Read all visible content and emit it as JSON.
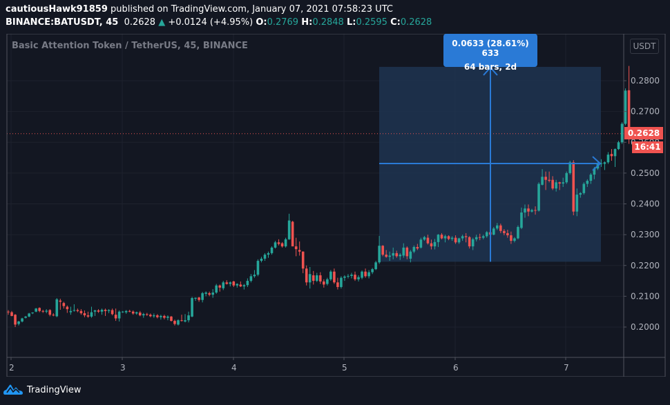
{
  "header": {
    "author": "cautiousHawk91859",
    "published": "published on TradingView.com, January 07, 2021 07:58:23 UTC",
    "symbol": "BINANCE:BATUSDT, 45",
    "last": "0.2628",
    "change": "+0.0124 (+4.95%)",
    "o_label": "O:",
    "o_value": "0.2769",
    "h_label": "H:",
    "h_value": "0.2848",
    "l_label": "L:",
    "l_value": "0.2595",
    "c_label": "C:",
    "c_value": "0.2628"
  },
  "chart": {
    "legend_title": "Basic Attention Token / TetherUS, 45, BINANCE",
    "currency": "USDT",
    "last_price_tag": "0.2628",
    "countdown_tag": "16:41",
    "measure_line1": "0.0633 (28.61%) 633",
    "measure_line2": "64 bars, 2d"
  },
  "colors": {
    "background": "#131722",
    "up": "#26a69a",
    "down": "#ef5350",
    "grid": "#1e222d",
    "axis_border": "#50535e",
    "measure_fill": "#1e3450",
    "measure_line": "#2a7ad6",
    "price_line": "#ef5350"
  },
  "brand": {
    "name": "TradingView"
  },
  "chart_data": {
    "type": "candlestick",
    "title": "Basic Attention Token / TetherUS, 45, BINANCE",
    "xlabel": "",
    "ylabel": "USDT",
    "x_ticks": [
      "2",
      "3",
      "4",
      "5",
      "6",
      "7"
    ],
    "y_ticks": [
      "0.2000",
      "0.2100",
      "0.2200",
      "0.2300",
      "0.2400",
      "0.2500",
      "0.2600",
      "0.2700",
      "0.2800"
    ],
    "ylim": [
      0.1925,
      0.2965
    ],
    "grid": true,
    "last_price": 0.2628,
    "measure": {
      "from_price": 0.2212,
      "to_price": 0.2845,
      "change": "0.0633 (28.61%) 633",
      "bars": "64 bars, 2d"
    },
    "ohlc": [
      [
        0.205,
        0.2055,
        0.204,
        0.2048
      ],
      [
        0.2048,
        0.2052,
        0.2035,
        0.2036
      ],
      [
        0.204,
        0.2042,
        0.2,
        0.2008
      ],
      [
        0.201,
        0.202,
        0.2005,
        0.2018
      ],
      [
        0.2018,
        0.203,
        0.2015,
        0.2028
      ],
      [
        0.203,
        0.2036,
        0.2028,
        0.2034
      ],
      [
        0.2034,
        0.2046,
        0.2032,
        0.2044
      ],
      [
        0.2045,
        0.2048,
        0.2042,
        0.2047
      ],
      [
        0.205,
        0.2062,
        0.2048,
        0.206
      ],
      [
        0.2062,
        0.2064,
        0.2048,
        0.2052
      ],
      [
        0.2052,
        0.2056,
        0.2046,
        0.205
      ],
      [
        0.205,
        0.2058,
        0.2045,
        0.2053
      ],
      [
        0.2055,
        0.2058,
        0.2035,
        0.204
      ],
      [
        0.204,
        0.2045,
        0.2035,
        0.2038
      ],
      [
        0.2035,
        0.2094,
        0.2032,
        0.209
      ],
      [
        0.2086,
        0.2092,
        0.2056,
        0.2082
      ],
      [
        0.2078,
        0.2082,
        0.206,
        0.2068
      ],
      [
        0.2066,
        0.207,
        0.2046,
        0.2058
      ],
      [
        0.2048,
        0.2066,
        0.204,
        0.2052
      ],
      [
        0.2053,
        0.2074,
        0.205,
        0.2055
      ],
      [
        0.2055,
        0.206,
        0.2048,
        0.2052
      ],
      [
        0.2052,
        0.2058,
        0.204,
        0.2045
      ],
      [
        0.2045,
        0.2054,
        0.2032,
        0.2038
      ],
      [
        0.2038,
        0.205,
        0.203,
        0.2034
      ],
      [
        0.2034,
        0.2066,
        0.203,
        0.2048
      ],
      [
        0.205,
        0.2056,
        0.2036,
        0.2054
      ],
      [
        0.2054,
        0.2058,
        0.2046,
        0.205
      ],
      [
        0.205,
        0.206,
        0.204,
        0.2056
      ],
      [
        0.2056,
        0.206,
        0.2036,
        0.2052
      ],
      [
        0.2052,
        0.2058,
        0.2045,
        0.2055
      ],
      [
        0.2055,
        0.206,
        0.2038,
        0.2042
      ],
      [
        0.204,
        0.206,
        0.202,
        0.2028
      ],
      [
        0.2028,
        0.2054,
        0.2018,
        0.205
      ],
      [
        0.2048,
        0.2052,
        0.2046,
        0.205
      ],
      [
        0.2048,
        0.2055,
        0.2043,
        0.2052
      ],
      [
        0.2052,
        0.2056,
        0.2048,
        0.205
      ],
      [
        0.205,
        0.2054,
        0.204,
        0.2044
      ],
      [
        0.2044,
        0.205,
        0.204,
        0.2048
      ],
      [
        0.2047,
        0.2052,
        0.2035,
        0.2038
      ],
      [
        0.2038,
        0.2046,
        0.203,
        0.2042
      ],
      [
        0.2042,
        0.2046,
        0.2036,
        0.204
      ],
      [
        0.204,
        0.2044,
        0.2032,
        0.2035
      ],
      [
        0.2035,
        0.2044,
        0.203,
        0.2038
      ],
      [
        0.2038,
        0.2042,
        0.2028,
        0.2032
      ],
      [
        0.2032,
        0.204,
        0.2024,
        0.2036
      ],
      [
        0.2036,
        0.204,
        0.2025,
        0.203
      ],
      [
        0.203,
        0.2038,
        0.2022,
        0.2034
      ],
      [
        0.2034,
        0.2036,
        0.2018,
        0.202
      ],
      [
        0.202,
        0.2024,
        0.2005,
        0.201
      ],
      [
        0.2008,
        0.2025,
        0.2005,
        0.2022
      ],
      [
        0.2022,
        0.204,
        0.2018,
        0.202
      ],
      [
        0.2018,
        0.2042,
        0.2015,
        0.2022
      ],
      [
        0.2022,
        0.205,
        0.2015,
        0.2038
      ],
      [
        0.2034,
        0.2098,
        0.2032,
        0.2094
      ],
      [
        0.2092,
        0.2096,
        0.2085,
        0.2095
      ],
      [
        0.2096,
        0.2098,
        0.2082,
        0.2088
      ],
      [
        0.2088,
        0.2114,
        0.208,
        0.211
      ],
      [
        0.2108,
        0.2116,
        0.21,
        0.2112
      ],
      [
        0.211,
        0.2115,
        0.21,
        0.2105
      ],
      [
        0.2105,
        0.2123,
        0.2095,
        0.2112
      ],
      [
        0.2112,
        0.214,
        0.2108,
        0.2135
      ],
      [
        0.2135,
        0.2138,
        0.2115,
        0.2128
      ],
      [
        0.2126,
        0.215,
        0.212,
        0.2145
      ],
      [
        0.2145,
        0.2152,
        0.2138,
        0.214
      ],
      [
        0.214,
        0.2148,
        0.2132,
        0.2145
      ],
      [
        0.2148,
        0.215,
        0.213,
        0.2135
      ],
      [
        0.2135,
        0.2142,
        0.2128,
        0.214
      ],
      [
        0.2138,
        0.2148,
        0.213,
        0.2132
      ],
      [
        0.2132,
        0.214,
        0.2122,
        0.2136
      ],
      [
        0.2136,
        0.2158,
        0.213,
        0.215
      ],
      [
        0.215,
        0.2172,
        0.2145,
        0.2165
      ],
      [
        0.2165,
        0.2185,
        0.216,
        0.217
      ],
      [
        0.217,
        0.222,
        0.2165,
        0.2215
      ],
      [
        0.2215,
        0.2228,
        0.221,
        0.2222
      ],
      [
        0.2222,
        0.224,
        0.2215,
        0.2235
      ],
      [
        0.2235,
        0.2245,
        0.2225,
        0.224
      ],
      [
        0.224,
        0.2262,
        0.2235,
        0.2258
      ],
      [
        0.2258,
        0.228,
        0.2255,
        0.2275
      ],
      [
        0.2275,
        0.2285,
        0.2265,
        0.227
      ],
      [
        0.2272,
        0.2276,
        0.2258,
        0.2262
      ],
      [
        0.2262,
        0.229,
        0.2258,
        0.2285
      ],
      [
        0.2285,
        0.2368,
        0.2283,
        0.2346
      ],
      [
        0.2342,
        0.2345,
        0.2262,
        0.2262
      ],
      [
        0.2262,
        0.229,
        0.223,
        0.2253
      ],
      [
        0.225,
        0.2278,
        0.2232,
        0.2245
      ],
      [
        0.2245,
        0.2246,
        0.2175,
        0.219
      ],
      [
        0.219,
        0.22,
        0.2135,
        0.2145
      ],
      [
        0.2145,
        0.2195,
        0.2125,
        0.2172
      ],
      [
        0.2168,
        0.2182,
        0.2138,
        0.215
      ],
      [
        0.215,
        0.2176,
        0.2146,
        0.2168
      ],
      [
        0.2168,
        0.2178,
        0.214,
        0.2148
      ],
      [
        0.2148,
        0.2155,
        0.2128,
        0.2138
      ],
      [
        0.214,
        0.216,
        0.2135,
        0.2155
      ],
      [
        0.2155,
        0.2185,
        0.215,
        0.218
      ],
      [
        0.218,
        0.219,
        0.214,
        0.2145
      ],
      [
        0.2145,
        0.216,
        0.2122,
        0.213
      ],
      [
        0.213,
        0.2165,
        0.2125,
        0.216
      ],
      [
        0.216,
        0.2168,
        0.215,
        0.2164
      ],
      [
        0.2164,
        0.2172,
        0.2158,
        0.2166
      ],
      [
        0.2166,
        0.2176,
        0.2158,
        0.217
      ],
      [
        0.217,
        0.218,
        0.215,
        0.2155
      ],
      [
        0.2155,
        0.2168,
        0.2148,
        0.2162
      ],
      [
        0.216,
        0.2184,
        0.2155,
        0.218
      ],
      [
        0.218,
        0.219,
        0.216,
        0.2165
      ],
      [
        0.2165,
        0.2185,
        0.2158,
        0.2178
      ],
      [
        0.2178,
        0.2192,
        0.2172,
        0.2188
      ],
      [
        0.2188,
        0.2215,
        0.2185,
        0.221
      ],
      [
        0.221,
        0.2296,
        0.2205,
        0.2264
      ],
      [
        0.2264,
        0.2266,
        0.223,
        0.2235
      ],
      [
        0.2235,
        0.225,
        0.2225,
        0.2228
      ],
      [
        0.2228,
        0.2245,
        0.2215,
        0.2232
      ],
      [
        0.2232,
        0.2258,
        0.222,
        0.224
      ],
      [
        0.224,
        0.2248,
        0.2225,
        0.223
      ],
      [
        0.223,
        0.224,
        0.2218,
        0.2235
      ],
      [
        0.2232,
        0.2272,
        0.2225,
        0.2258
      ],
      [
        0.2258,
        0.2262,
        0.222,
        0.223
      ],
      [
        0.2222,
        0.225,
        0.221,
        0.2245
      ],
      [
        0.2245,
        0.2265,
        0.224,
        0.226
      ],
      [
        0.226,
        0.227,
        0.225,
        0.2255
      ],
      [
        0.2258,
        0.229,
        0.2255,
        0.2284
      ],
      [
        0.2284,
        0.2296,
        0.228,
        0.2292
      ],
      [
        0.229,
        0.23,
        0.2268,
        0.2272
      ],
      [
        0.2272,
        0.2284,
        0.2252,
        0.2262
      ],
      [
        0.2262,
        0.2286,
        0.2252,
        0.2276
      ],
      [
        0.2276,
        0.2302,
        0.226,
        0.23
      ],
      [
        0.23,
        0.2305,
        0.2285,
        0.2288
      ],
      [
        0.2288,
        0.23,
        0.2275,
        0.2295
      ],
      [
        0.2295,
        0.2298,
        0.2282,
        0.2286
      ],
      [
        0.2286,
        0.2295,
        0.228,
        0.229
      ],
      [
        0.229,
        0.2298,
        0.227,
        0.2275
      ],
      [
        0.2275,
        0.229,
        0.227,
        0.2288
      ],
      [
        0.2288,
        0.23,
        0.228,
        0.2295
      ],
      [
        0.2295,
        0.2305,
        0.2275,
        0.2292
      ],
      [
        0.2292,
        0.2295,
        0.2255,
        0.2262
      ],
      [
        0.2262,
        0.229,
        0.225,
        0.2285
      ],
      [
        0.2285,
        0.23,
        0.2278,
        0.2292
      ],
      [
        0.2292,
        0.2303,
        0.2282,
        0.229
      ],
      [
        0.229,
        0.23,
        0.2285,
        0.2295
      ],
      [
        0.2295,
        0.2312,
        0.229,
        0.2308
      ],
      [
        0.2308,
        0.2315,
        0.2295,
        0.23
      ],
      [
        0.23,
        0.2325,
        0.2298,
        0.232
      ],
      [
        0.232,
        0.2338,
        0.2315,
        0.233
      ],
      [
        0.233,
        0.2336,
        0.2305,
        0.2312
      ],
      [
        0.2312,
        0.2318,
        0.2298,
        0.2305
      ],
      [
        0.2305,
        0.2316,
        0.229,
        0.2298
      ],
      [
        0.2298,
        0.231,
        0.227,
        0.228
      ],
      [
        0.228,
        0.2292,
        0.2275,
        0.2288
      ],
      [
        0.2288,
        0.233,
        0.2285,
        0.2325
      ],
      [
        0.2322,
        0.2388,
        0.2318,
        0.2372
      ],
      [
        0.2372,
        0.2398,
        0.2355,
        0.2385
      ],
      [
        0.2385,
        0.2398,
        0.236,
        0.2375
      ],
      [
        0.2375,
        0.2384,
        0.2372,
        0.238
      ],
      [
        0.238,
        0.2392,
        0.2365,
        0.2378
      ],
      [
        0.2378,
        0.247,
        0.2375,
        0.2465
      ],
      [
        0.2462,
        0.2513,
        0.246,
        0.2488
      ],
      [
        0.2488,
        0.2505,
        0.2445,
        0.2478
      ],
      [
        0.2478,
        0.2505,
        0.247,
        0.2475
      ],
      [
        0.2478,
        0.249,
        0.2445,
        0.245
      ],
      [
        0.245,
        0.2478,
        0.244,
        0.247
      ],
      [
        0.247,
        0.2472,
        0.2445,
        0.2466
      ],
      [
        0.2466,
        0.2485,
        0.2455,
        0.247
      ],
      [
        0.247,
        0.2505,
        0.2465,
        0.25
      ],
      [
        0.25,
        0.254,
        0.2495,
        0.2535
      ],
      [
        0.2535,
        0.2542,
        0.2363,
        0.2375
      ],
      [
        0.2375,
        0.245,
        0.236,
        0.243
      ],
      [
        0.243,
        0.2438,
        0.242,
        0.2435
      ],
      [
        0.2435,
        0.247,
        0.243,
        0.2465
      ],
      [
        0.2465,
        0.248,
        0.2455,
        0.2475
      ],
      [
        0.2475,
        0.25,
        0.2465,
        0.2495
      ],
      [
        0.2495,
        0.252,
        0.248,
        0.2515
      ],
      [
        0.2515,
        0.2535,
        0.251,
        0.253
      ],
      [
        0.253,
        0.2545,
        0.252,
        0.2532
      ],
      [
        0.253,
        0.2538,
        0.251,
        0.2535
      ],
      [
        0.2535,
        0.2568,
        0.253,
        0.256
      ],
      [
        0.2562,
        0.2578,
        0.254,
        0.2555
      ],
      [
        0.2555,
        0.258,
        0.252,
        0.2578
      ],
      [
        0.2578,
        0.2605,
        0.2575,
        0.26
      ],
      [
        0.26,
        0.2665,
        0.2595,
        0.266
      ],
      [
        0.266,
        0.2775,
        0.2655,
        0.2768
      ],
      [
        0.2769,
        0.2848,
        0.2595,
        0.2628
      ]
    ]
  }
}
